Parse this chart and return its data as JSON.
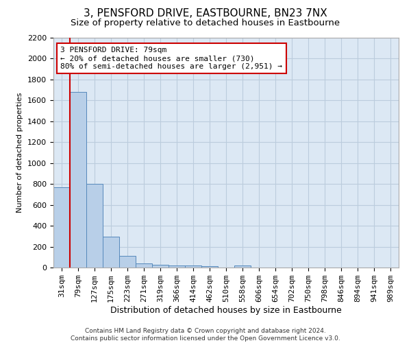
{
  "title_line1": "3, PENSFORD DRIVE, EASTBOURNE, BN23 7NX",
  "title_line2": "Size of property relative to detached houses in Eastbourne",
  "xlabel": "Distribution of detached houses by size in Eastbourne",
  "ylabel": "Number of detached properties",
  "bar_values": [
    770,
    1680,
    800,
    295,
    110,
    40,
    28,
    22,
    20,
    15,
    0,
    22,
    0,
    0,
    0,
    0,
    0,
    0,
    0,
    0,
    0
  ],
  "bar_labels": [
    "31sqm",
    "79sqm",
    "127sqm",
    "175sqm",
    "223sqm",
    "271sqm",
    "319sqm",
    "366sqm",
    "414sqm",
    "462sqm",
    "510sqm",
    "558sqm",
    "606sqm",
    "654sqm",
    "702sqm",
    "750sqm",
    "798sqm",
    "846sqm",
    "894sqm",
    "941sqm",
    "989sqm"
  ],
  "bar_color": "#b8cfe8",
  "bar_edge_color": "#5588bb",
  "vline_x_index": 1,
  "vline_color": "#cc0000",
  "ylim": [
    0,
    2200
  ],
  "yticks": [
    0,
    200,
    400,
    600,
    800,
    1000,
    1200,
    1400,
    1600,
    1800,
    2000,
    2200
  ],
  "annotation_line1": "3 PENSFORD DRIVE: 79sqm",
  "annotation_line2": "← 20% of detached houses are smaller (730)",
  "annotation_line3": "80% of semi-detached houses are larger (2,951) →",
  "annotation_box_color": "white",
  "annotation_box_edge_color": "#cc0000",
  "grid_color": "#bbccdd",
  "bg_color": "#dce8f4",
  "footer_line1": "Contains HM Land Registry data © Crown copyright and database right 2024.",
  "footer_line2": "Contains public sector information licensed under the Open Government Licence v3.0.",
  "title_fontsize": 11,
  "subtitle_fontsize": 9.5,
  "ylabel_fontsize": 8,
  "xlabel_fontsize": 9,
  "tick_fontsize": 8,
  "footer_fontsize": 6.5
}
